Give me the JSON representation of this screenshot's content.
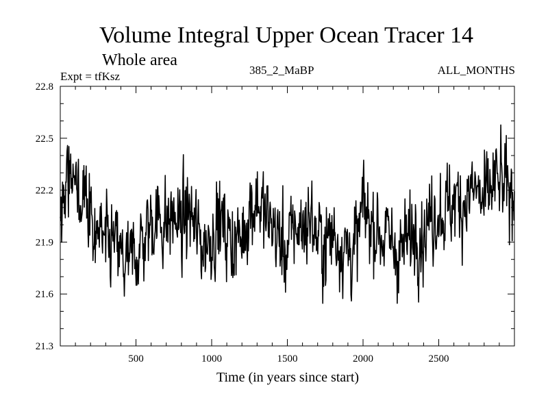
{
  "chart_data": {
    "type": "line",
    "title": "Volume Integral Upper Ocean Tracer 14",
    "subtitle": "Whole area",
    "expt_label": "Expt = tfKsz",
    "run_label": "385_2_MaBP",
    "months_label": "ALL_MONTHS",
    "xlabel": "Time (in years since start)",
    "ylabel": "",
    "xlim": [
      0,
      3000
    ],
    "ylim": [
      21.3,
      22.8
    ],
    "x_ticks": [
      500,
      1000,
      1500,
      2000,
      2500
    ],
    "x_tick_labels": [
      "500",
      "1000",
      "1500",
      "2000",
      "2500"
    ],
    "y_ticks": [
      21.3,
      21.6,
      21.9,
      22.2,
      22.5,
      22.8
    ],
    "y_tick_labels": [
      "21.3",
      "21.6",
      "21.9",
      "22.2",
      "22.5",
      "22.8"
    ],
    "grid": false,
    "series": [
      {
        "name": "tfKsz",
        "x": [
          0,
          50,
          100,
          150,
          200,
          250,
          300,
          350,
          400,
          450,
          500,
          550,
          600,
          650,
          700,
          750,
          800,
          850,
          900,
          950,
          1000,
          1050,
          1100,
          1150,
          1200,
          1250,
          1300,
          1350,
          1400,
          1450,
          1500,
          1550,
          1600,
          1650,
          1700,
          1750,
          1800,
          1850,
          1900,
          1950,
          2000,
          2050,
          2100,
          2150,
          2200,
          2250,
          2300,
          2350,
          2400,
          2450,
          2500,
          2550,
          2600,
          2650,
          2700,
          2750,
          2800,
          2850,
          2900,
          2950,
          3000
        ],
        "values": [
          21.95,
          22.25,
          22.15,
          22.12,
          22.05,
          21.98,
          21.85,
          21.9,
          21.8,
          21.75,
          21.85,
          21.9,
          22.02,
          22.05,
          22.0,
          22.05,
          21.98,
          22.08,
          21.95,
          21.88,
          21.95,
          22.02,
          21.95,
          21.9,
          21.92,
          22.1,
          22.15,
          22.05,
          22.0,
          21.9,
          21.85,
          22.0,
          21.98,
          22.05,
          21.92,
          21.88,
          21.95,
          21.9,
          21.85,
          21.85,
          22.1,
          22.02,
          21.98,
          21.92,
          21.88,
          21.85,
          21.9,
          22.0,
          21.95,
          22.05,
          22.1,
          22.08,
          22.15,
          22.12,
          22.18,
          22.2,
          22.1,
          22.22,
          22.25,
          22.18,
          22.2
        ]
      }
    ]
  }
}
